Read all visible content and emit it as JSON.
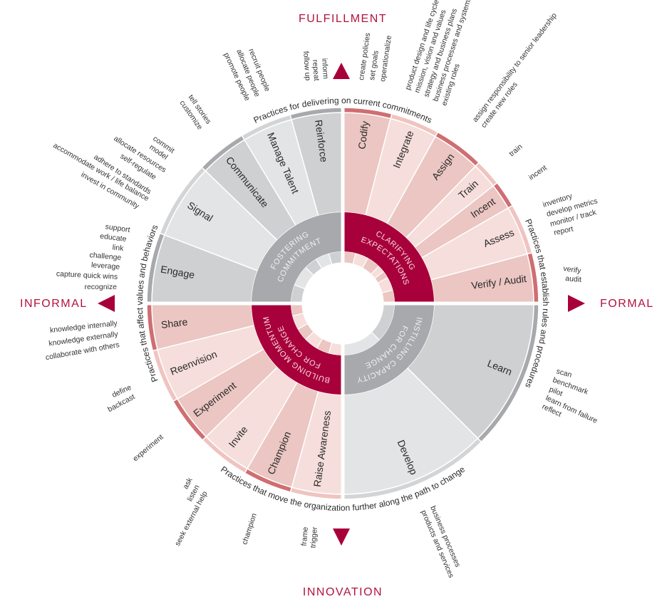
{
  "directions": {
    "top": "FULFILLMENT",
    "bottom": "INNOVATION",
    "left": "INFORMAL",
    "right": "FORMAL"
  },
  "captions": {
    "top": "Practices for delivering on current commitments",
    "right": "Practices that establish rules and procedures",
    "bottom": "Practices that move the organization further along the path to change",
    "left": "Practices that affect values and behaviors"
  },
  "colors": {
    "accent": "#a8003a",
    "pink_dark": "#ebc6c2",
    "pink_light": "#f5dedb",
    "pink_band_dark": "#cf6e72",
    "pink_band_light": "#efc4c0",
    "grey_dark": "#cfd0d2",
    "grey_light": "#e3e4e5",
    "grey_band_dark": "#a7a9ac",
    "grey_band_light": "#d3d4d6",
    "hub_grey": "#a7a9ac"
  },
  "quadrants": [
    {
      "key": "clarifying",
      "title_lines": [
        "CLARIFYING",
        "EXPECTATIONS"
      ],
      "tone": "pink",
      "hub": "accent",
      "segments": [
        {
          "label": "Codify",
          "annotations": [
            "create policies",
            "set goals",
            "operationalize"
          ]
        },
        {
          "label": "Integrate",
          "annotations": [
            "product design and life cycle",
            "mission, vision and values",
            "strategy and business plans",
            "business processes and systems",
            "existing roles"
          ]
        },
        {
          "label": "Assign",
          "annotations": [
            "assign responsibility to senior leadership",
            "create new roles"
          ]
        },
        {
          "label": "Train",
          "annotations": [
            "train"
          ]
        },
        {
          "label": "Incent",
          "annotations": [
            "incent"
          ]
        },
        {
          "label": "Assess",
          "annotations": [
            "inventory",
            "develop metrics",
            "monitor / track",
            "report"
          ]
        },
        {
          "label": "Verify / Audit",
          "annotations": [
            "verify",
            "audit"
          ]
        }
      ]
    },
    {
      "key": "instilling",
      "title_lines": [
        "INSTILLING CAPACITY",
        "FOR CHANGE"
      ],
      "tone": "grey",
      "hub": "grey",
      "segments": [
        {
          "label": "Learn",
          "annotations": [
            "scan",
            "benchmark",
            "pilot",
            "learn from failure",
            "reflect"
          ]
        },
        {
          "label": "Develop",
          "annotations": [
            "business processes",
            "products and services"
          ]
        }
      ]
    },
    {
      "key": "building",
      "title_lines": [
        "BUILDING MOMENTUM",
        "FOR CHANGE"
      ],
      "tone": "pink",
      "hub": "accent",
      "segments": [
        {
          "label": "Share",
          "annotations": [
            "knowledge internally",
            "knowledge externally",
            "collaborate with others"
          ]
        },
        {
          "label": "Reenvision",
          "annotations": [
            "define",
            "backcast"
          ]
        },
        {
          "label": "Experiment",
          "annotations": [
            "experiment"
          ]
        },
        {
          "label": "Invite",
          "annotations": [
            "ask",
            "listen",
            "seek external help"
          ]
        },
        {
          "label": "Champion",
          "annotations": [
            "champion"
          ]
        },
        {
          "label": "Raise Awareness",
          "annotations": [
            "frame",
            "trigger"
          ]
        }
      ]
    },
    {
      "key": "fostering",
      "title_lines": [
        "FOSTERING",
        "COMMITMENT"
      ],
      "tone": "grey",
      "hub": "grey",
      "segments": [
        {
          "label": "Reinforce",
          "annotations": [
            "inform",
            "repeat",
            "follow up"
          ]
        },
        {
          "label": "Manage Talent",
          "annotations": [
            "recruit people",
            "allocate people",
            "promote people"
          ]
        },
        {
          "label": "Communicate",
          "annotations": [
            "tell stories",
            "customize"
          ]
        },
        {
          "label": "Signal",
          "annotations": [
            "commit",
            "model",
            "allocate resources",
            "self-regulate",
            "adhere to standards",
            "accommodate work / life balance",
            "invest in community"
          ]
        },
        {
          "label": "Engage",
          "annotations": [
            "support",
            "educate",
            "link",
            "challenge",
            "leverage",
            "capture quick wins",
            "recognize"
          ]
        }
      ]
    }
  ]
}
